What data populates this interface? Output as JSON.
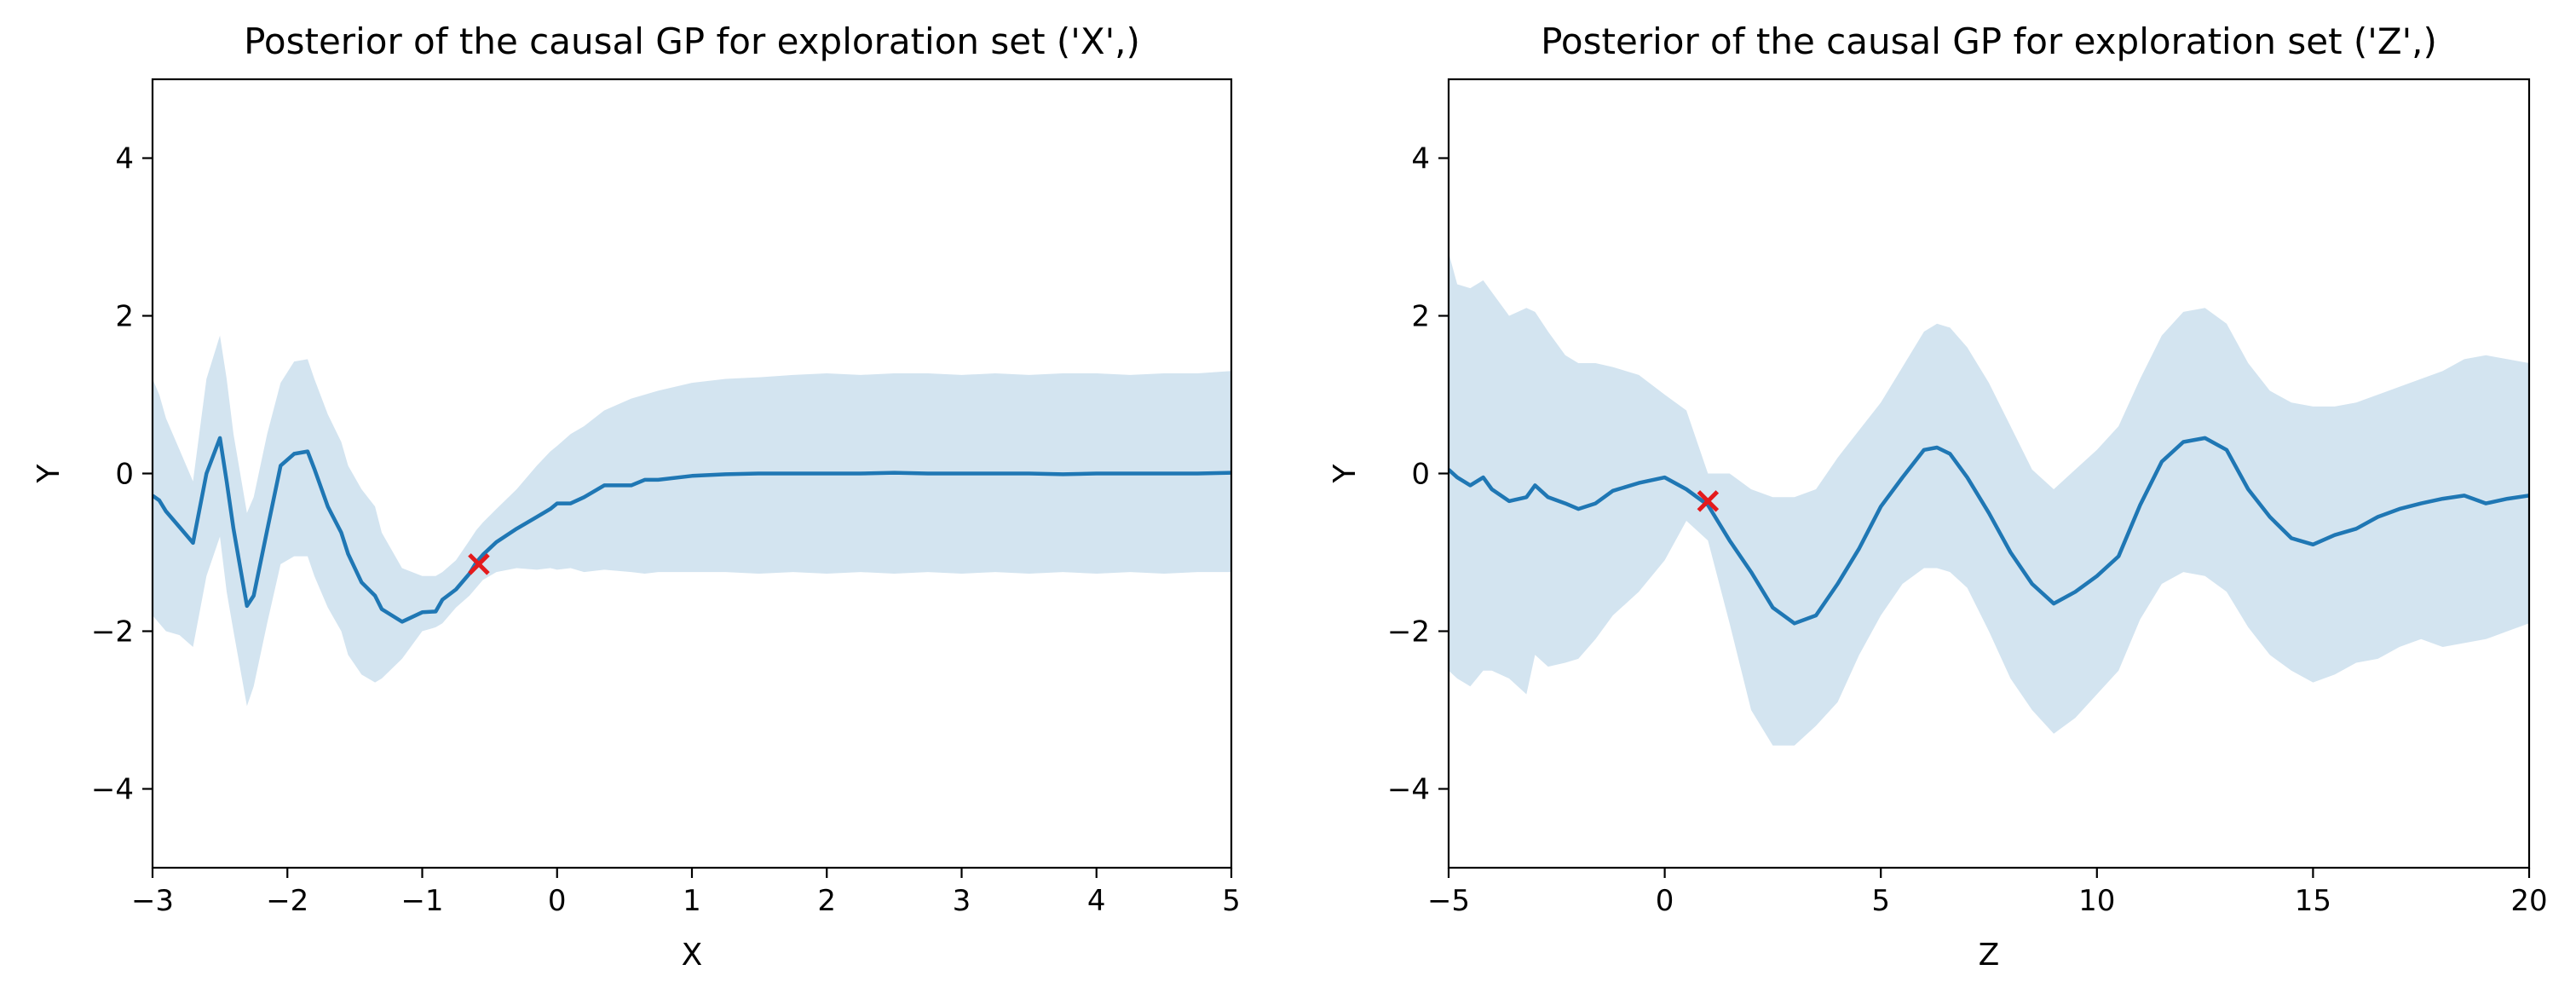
{
  "chart_data": [
    {
      "type": "line",
      "title": "Posterior of the causal GP for exploration set ('X',)",
      "xlabel": "X",
      "ylabel": "Y",
      "xlim": [
        -3,
        5
      ],
      "ylim": [
        -5,
        5
      ],
      "xticks": [
        -3,
        -2,
        -1,
        0,
        1,
        2,
        3,
        4,
        5
      ],
      "xtick_labels": [
        "−3",
        "−2",
        "−1",
        "0",
        "1",
        "2",
        "3",
        "4",
        "5"
      ],
      "yticks": [
        -4,
        -2,
        0,
        2,
        4
      ],
      "ytick_labels": [
        "−4",
        "−2",
        "0",
        "2",
        "4"
      ],
      "grid": false,
      "series": [
        {
          "x": [
            -3.0,
            -2.95,
            -2.9,
            -2.8,
            -2.7,
            -2.6,
            -2.5,
            -2.45,
            -2.4,
            -2.3,
            -2.25,
            -2.15,
            -2.05,
            -1.95,
            -1.85,
            -1.8,
            -1.7,
            -1.6,
            -1.55,
            -1.45,
            -1.35,
            -1.3,
            -1.15,
            -1.0,
            -0.9,
            -0.85,
            -0.75,
            -0.65,
            -0.6,
            -0.55,
            -0.45,
            -0.3,
            -0.15,
            -0.05,
            0.0,
            0.1,
            0.2,
            0.35,
            0.55,
            0.65,
            0.75,
            1.0,
            1.25,
            1.5,
            1.75,
            2.0,
            2.25,
            2.5,
            2.75,
            3.0,
            3.25,
            3.5,
            3.75,
            4.0,
            4.25,
            4.5,
            4.75,
            5.0
          ],
          "mean": [
            -0.28,
            -0.34,
            -0.48,
            -0.68,
            -0.88,
            0.0,
            0.45,
            -0.1,
            -0.7,
            -1.68,
            -1.55,
            -0.72,
            0.1,
            0.25,
            0.28,
            0.06,
            -0.42,
            -0.75,
            -1.02,
            -1.38,
            -1.55,
            -1.72,
            -1.88,
            -1.76,
            -1.75,
            -1.6,
            -1.47,
            -1.27,
            -1.13,
            -1.03,
            -0.87,
            -0.7,
            -0.55,
            -0.45,
            -0.38,
            -0.38,
            -0.3,
            -0.15,
            -0.15,
            -0.08,
            -0.08,
            -0.03,
            -0.01,
            0.0,
            0.0,
            0.0,
            0.0,
            0.01,
            0.0,
            0.0,
            0.0,
            0.0,
            -0.01,
            0.0,
            0.0,
            0.0,
            0.0,
            0.01
          ],
          "lower": [
            -1.8,
            -1.9,
            -2.0,
            -2.05,
            -2.2,
            -1.3,
            -0.8,
            -1.5,
            -2.0,
            -2.95,
            -2.7,
            -1.9,
            -1.15,
            -1.05,
            -1.05,
            -1.3,
            -1.7,
            -2.0,
            -2.3,
            -2.55,
            -2.65,
            -2.6,
            -2.35,
            -2.0,
            -1.95,
            -1.9,
            -1.7,
            -1.55,
            -1.45,
            -1.35,
            -1.25,
            -1.2,
            -1.22,
            -1.2,
            -1.22,
            -1.2,
            -1.25,
            -1.22,
            -1.25,
            -1.27,
            -1.25,
            -1.25,
            -1.25,
            -1.27,
            -1.25,
            -1.27,
            -1.25,
            -1.27,
            -1.25,
            -1.27,
            -1.25,
            -1.27,
            -1.25,
            -1.27,
            -1.25,
            -1.27,
            -1.25,
            -1.25
          ],
          "upper": [
            1.2,
            1.0,
            0.7,
            0.3,
            -0.1,
            1.2,
            1.75,
            1.2,
            0.5,
            -0.5,
            -0.3,
            0.5,
            1.15,
            1.42,
            1.45,
            1.2,
            0.75,
            0.4,
            0.1,
            -0.2,
            -0.42,
            -0.75,
            -1.2,
            -1.3,
            -1.3,
            -1.25,
            -1.1,
            -0.85,
            -0.72,
            -0.62,
            -0.45,
            -0.2,
            0.1,
            0.28,
            0.35,
            0.5,
            0.6,
            0.8,
            0.95,
            1.0,
            1.05,
            1.15,
            1.2,
            1.22,
            1.25,
            1.27,
            1.25,
            1.27,
            1.27,
            1.25,
            1.27,
            1.25,
            1.27,
            1.27,
            1.25,
            1.27,
            1.27,
            1.3
          ]
        }
      ],
      "markers": [
        {
          "x": -0.58,
          "y": -1.15,
          "color": "#e41a1c",
          "symbol": "x"
        }
      ],
      "colors": {
        "line": "#1f77b4",
        "band": "#d3e4f0"
      }
    },
    {
      "type": "line",
      "title": "Posterior of the causal GP for exploration set ('Z',)",
      "xlabel": "Z",
      "ylabel": "Y",
      "xlim": [
        -5,
        20
      ],
      "ylim": [
        -5,
        5
      ],
      "xticks": [
        -5,
        0,
        5,
        10,
        15,
        20
      ],
      "xtick_labels": [
        "−5",
        "0",
        "5",
        "10",
        "15",
        "20"
      ],
      "yticks": [
        -4,
        -2,
        0,
        2,
        4
      ],
      "ytick_labels": [
        "−4",
        "−2",
        "0",
        "2",
        "4"
      ],
      "grid": false,
      "series": [
        {
          "x": [
            -5.0,
            -4.8,
            -4.5,
            -4.2,
            -4.0,
            -3.6,
            -3.2,
            -3.0,
            -2.7,
            -2.3,
            -2.0,
            -1.6,
            -1.2,
            -0.6,
            0.0,
            0.5,
            1.0,
            1.5,
            2.0,
            2.5,
            3.0,
            3.5,
            4.0,
            4.5,
            5.0,
            5.5,
            6.0,
            6.3,
            6.6,
            7.0,
            7.5,
            8.0,
            8.5,
            9.0,
            9.5,
            10.0,
            10.5,
            11.0,
            11.5,
            12.0,
            12.5,
            13.0,
            13.5,
            14.0,
            14.5,
            15.0,
            15.5,
            16.0,
            16.5,
            17.0,
            17.5,
            18.0,
            18.5,
            19.0,
            19.5,
            20.0
          ],
          "mean": [
            0.05,
            -0.05,
            -0.15,
            -0.05,
            -0.2,
            -0.35,
            -0.3,
            -0.15,
            -0.3,
            -0.38,
            -0.45,
            -0.38,
            -0.22,
            -0.12,
            -0.05,
            -0.2,
            -0.4,
            -0.85,
            -1.25,
            -1.7,
            -1.9,
            -1.8,
            -1.4,
            -0.95,
            -0.42,
            -0.05,
            0.3,
            0.33,
            0.25,
            -0.05,
            -0.5,
            -1.0,
            -1.4,
            -1.65,
            -1.5,
            -1.3,
            -1.05,
            -0.4,
            0.15,
            0.4,
            0.45,
            0.3,
            -0.2,
            -0.55,
            -0.82,
            -0.9,
            -0.78,
            -0.7,
            -0.55,
            -0.45,
            -0.38,
            -0.32,
            -0.28,
            -0.38,
            -0.32,
            -0.28
          ],
          "lower": [
            -2.5,
            -2.6,
            -2.7,
            -2.5,
            -2.5,
            -2.6,
            -2.8,
            -2.3,
            -2.45,
            -2.4,
            -2.35,
            -2.1,
            -1.8,
            -1.5,
            -1.1,
            -0.6,
            -0.85,
            -1.9,
            -3.0,
            -3.45,
            -3.45,
            -3.2,
            -2.9,
            -2.3,
            -1.8,
            -1.4,
            -1.2,
            -1.2,
            -1.25,
            -1.45,
            -2.0,
            -2.6,
            -3.0,
            -3.3,
            -3.1,
            -2.8,
            -2.5,
            -1.85,
            -1.4,
            -1.25,
            -1.3,
            -1.5,
            -1.95,
            -2.3,
            -2.5,
            -2.65,
            -2.55,
            -2.4,
            -2.35,
            -2.2,
            -2.1,
            -2.2,
            -2.15,
            -2.1,
            -2.0,
            -1.9
          ],
          "upper": [
            2.8,
            2.4,
            2.35,
            2.45,
            2.3,
            2.0,
            2.1,
            2.05,
            1.8,
            1.5,
            1.4,
            1.4,
            1.35,
            1.25,
            1.0,
            0.8,
            0.0,
            0.0,
            -0.2,
            -0.3,
            -0.3,
            -0.2,
            0.2,
            0.55,
            0.9,
            1.35,
            1.8,
            1.9,
            1.85,
            1.6,
            1.15,
            0.6,
            0.05,
            -0.2,
            0.05,
            0.3,
            0.6,
            1.2,
            1.75,
            2.05,
            2.1,
            1.9,
            1.4,
            1.05,
            0.9,
            0.85,
            0.85,
            0.9,
            1.0,
            1.1,
            1.2,
            1.3,
            1.45,
            1.5,
            1.45,
            1.4
          ]
        }
      ],
      "markers": [
        {
          "x": 1.0,
          "y": -0.35,
          "color": "#e41a1c",
          "symbol": "x"
        }
      ],
      "colors": {
        "line": "#1f77b4",
        "band": "#d3e4f0"
      }
    }
  ]
}
